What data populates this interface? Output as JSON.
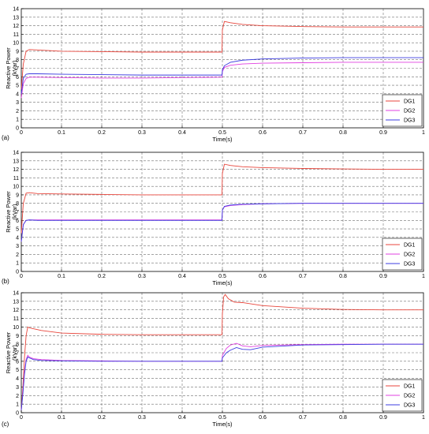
{
  "chart_data": [
    {
      "type": "line",
      "panel_label": "(a)",
      "xlabel": "Time(s)",
      "ylabel": "Reactive Power",
      "ylabel_unit": "(kVar)",
      "xlim": [
        0,
        1
      ],
      "ylim": [
        0,
        14
      ],
      "xticks": [
        0,
        0.1,
        0.2,
        0.3,
        0.4,
        0.5,
        0.6,
        0.7,
        0.8,
        0.9,
        1
      ],
      "yticks": [
        0,
        1,
        2,
        3,
        4,
        5,
        6,
        7,
        8,
        9,
        10,
        11,
        12,
        13,
        14
      ],
      "grid": true,
      "legend_position": "bottom-right",
      "series": [
        {
          "name": "DG1",
          "color": "#e8463c",
          "x": [
            0,
            0.005,
            0.012,
            0.02,
            0.04,
            0.1,
            0.2,
            0.3,
            0.4,
            0.499,
            0.5,
            0.505,
            0.52,
            0.55,
            0.6,
            0.7,
            0.8,
            0.9,
            1.0
          ],
          "y": [
            4.5,
            7.5,
            9.0,
            9.2,
            9.15,
            9.0,
            8.95,
            8.9,
            8.9,
            8.9,
            11.5,
            12.5,
            12.35,
            12.15,
            12.0,
            11.9,
            11.85,
            11.85,
            11.85
          ]
        },
        {
          "name": "DG2",
          "color": "#e040e0",
          "x": [
            0,
            0.005,
            0.012,
            0.02,
            0.04,
            0.1,
            0.2,
            0.3,
            0.4,
            0.499,
            0.5,
            0.505,
            0.52,
            0.55,
            0.6,
            0.7,
            0.8,
            0.9,
            1.0
          ],
          "y": [
            3.5,
            5.2,
            5.8,
            5.95,
            5.95,
            5.9,
            5.85,
            5.85,
            5.9,
            5.95,
            6.6,
            7.1,
            7.35,
            7.5,
            7.6,
            7.65,
            7.7,
            7.7,
            7.7
          ]
        },
        {
          "name": "DG3",
          "color": "#3c3ce0",
          "x": [
            0,
            0.005,
            0.012,
            0.02,
            0.04,
            0.1,
            0.2,
            0.3,
            0.4,
            0.499,
            0.5,
            0.505,
            0.52,
            0.55,
            0.6,
            0.7,
            0.8,
            0.9,
            1.0
          ],
          "y": [
            4.0,
            5.8,
            6.3,
            6.35,
            6.35,
            6.3,
            6.25,
            6.2,
            6.2,
            6.2,
            6.8,
            7.3,
            7.7,
            7.95,
            8.1,
            8.2,
            8.25,
            8.25,
            8.25
          ]
        }
      ]
    },
    {
      "type": "line",
      "panel_label": "(b)",
      "xlabel": "Time(s)",
      "ylabel": "Reactive Power",
      "ylabel_unit": "(kVar)",
      "xlim": [
        0,
        1
      ],
      "ylim": [
        0,
        14
      ],
      "xticks": [
        0,
        0.1,
        0.2,
        0.3,
        0.4,
        0.5,
        0.6,
        0.7,
        0.8,
        0.9,
        1
      ],
      "yticks": [
        0,
        1,
        2,
        3,
        4,
        5,
        6,
        7,
        8,
        9,
        10,
        11,
        12,
        13,
        14
      ],
      "grid": true,
      "legend_position": "bottom-right",
      "series": [
        {
          "name": "DG1",
          "color": "#e8463c",
          "x": [
            0,
            0.005,
            0.012,
            0.02,
            0.04,
            0.1,
            0.2,
            0.3,
            0.4,
            0.499,
            0.5,
            0.505,
            0.52,
            0.55,
            0.6,
            0.7,
            0.8,
            0.9,
            1.0
          ],
          "y": [
            4.5,
            8.0,
            9.2,
            9.25,
            9.15,
            9.1,
            9.05,
            9.0,
            9.0,
            9.0,
            11.5,
            12.6,
            12.45,
            12.3,
            12.2,
            12.1,
            12.05,
            12.0,
            12.0
          ]
        },
        {
          "name": "DG2",
          "color": "#e040e0",
          "x": [
            0,
            0.005,
            0.012,
            0.02,
            0.04,
            0.1,
            0.2,
            0.3,
            0.4,
            0.499,
            0.5,
            0.505,
            0.52,
            0.55,
            0.6,
            0.7,
            0.8,
            0.9,
            1.0
          ],
          "y": [
            3.5,
            5.5,
            6.0,
            6.05,
            6.05,
            6.05,
            6.05,
            6.05,
            6.05,
            6.05,
            7.2,
            7.6,
            7.75,
            7.85,
            7.95,
            8.0,
            8.0,
            8.0,
            8.0
          ]
        },
        {
          "name": "DG3",
          "color": "#3c3ce0",
          "x": [
            0,
            0.005,
            0.012,
            0.02,
            0.04,
            0.1,
            0.2,
            0.3,
            0.4,
            0.499,
            0.5,
            0.505,
            0.52,
            0.55,
            0.6,
            0.7,
            0.8,
            0.9,
            1.0
          ],
          "y": [
            3.5,
            5.5,
            6.0,
            6.05,
            6.0,
            6.0,
            6.0,
            6.0,
            6.0,
            6.0,
            7.2,
            7.65,
            7.8,
            7.9,
            7.95,
            8.0,
            8.0,
            8.0,
            8.0
          ]
        }
      ]
    },
    {
      "type": "line",
      "panel_label": "(c)",
      "xlabel": "Time(s)",
      "ylabel": "Reactive Power",
      "ylabel_unit": "(kVar)",
      "xlim": [
        0,
        1
      ],
      "ylim": [
        0,
        14
      ],
      "xticks": [
        0,
        0.1,
        0.2,
        0.3,
        0.4,
        0.5,
        0.6,
        0.7,
        0.8,
        0.9,
        1
      ],
      "yticks": [
        0,
        1,
        2,
        3,
        4,
        5,
        6,
        7,
        8,
        9,
        10,
        11,
        12,
        13,
        14
      ],
      "grid": true,
      "legend_position": "bottom-right",
      "series": [
        {
          "name": "DG1",
          "color": "#e8463c",
          "x": [
            0,
            0.004,
            0.008,
            0.012,
            0.016,
            0.02,
            0.03,
            0.05,
            0.1,
            0.2,
            0.3,
            0.4,
            0.499,
            0.5,
            0.503,
            0.507,
            0.515,
            0.53,
            0.55,
            0.6,
            0.7,
            0.8,
            0.9,
            1.0
          ],
          "y": [
            0.3,
            3.0,
            6.5,
            9.0,
            10.0,
            9.9,
            9.8,
            9.6,
            9.3,
            9.15,
            9.1,
            9.1,
            9.1,
            11.5,
            13.5,
            13.8,
            13.3,
            12.9,
            12.85,
            12.5,
            12.2,
            12.05,
            12.0,
            12.0
          ]
        },
        {
          "name": "DG2",
          "color": "#e040e0",
          "x": [
            0,
            0.004,
            0.008,
            0.012,
            0.016,
            0.02,
            0.03,
            0.05,
            0.1,
            0.2,
            0.3,
            0.4,
            0.499,
            0.5,
            0.51,
            0.52,
            0.535,
            0.55,
            0.57,
            0.6,
            0.7,
            0.8,
            0.9,
            1.0
          ],
          "y": [
            0.3,
            2.5,
            4.8,
            6.2,
            6.7,
            6.5,
            6.3,
            6.2,
            6.1,
            6.05,
            6.0,
            6.0,
            6.0,
            6.7,
            7.5,
            7.9,
            8.1,
            7.8,
            7.7,
            7.85,
            7.95,
            8.0,
            8.0,
            8.0
          ]
        },
        {
          "name": "DG3",
          "color": "#3c3ce0",
          "x": [
            0,
            0.004,
            0.008,
            0.012,
            0.016,
            0.02,
            0.03,
            0.05,
            0.1,
            0.2,
            0.3,
            0.4,
            0.499,
            0.5,
            0.51,
            0.52,
            0.535,
            0.55,
            0.57,
            0.6,
            0.7,
            0.8,
            0.9,
            1.0
          ],
          "y": [
            0.3,
            2.2,
            4.5,
            6.0,
            6.5,
            6.4,
            6.2,
            6.1,
            6.05,
            6.0,
            6.0,
            6.0,
            6.0,
            6.4,
            7.0,
            7.3,
            7.6,
            7.4,
            7.35,
            7.65,
            7.9,
            7.95,
            8.0,
            8.0
          ]
        }
      ]
    }
  ]
}
